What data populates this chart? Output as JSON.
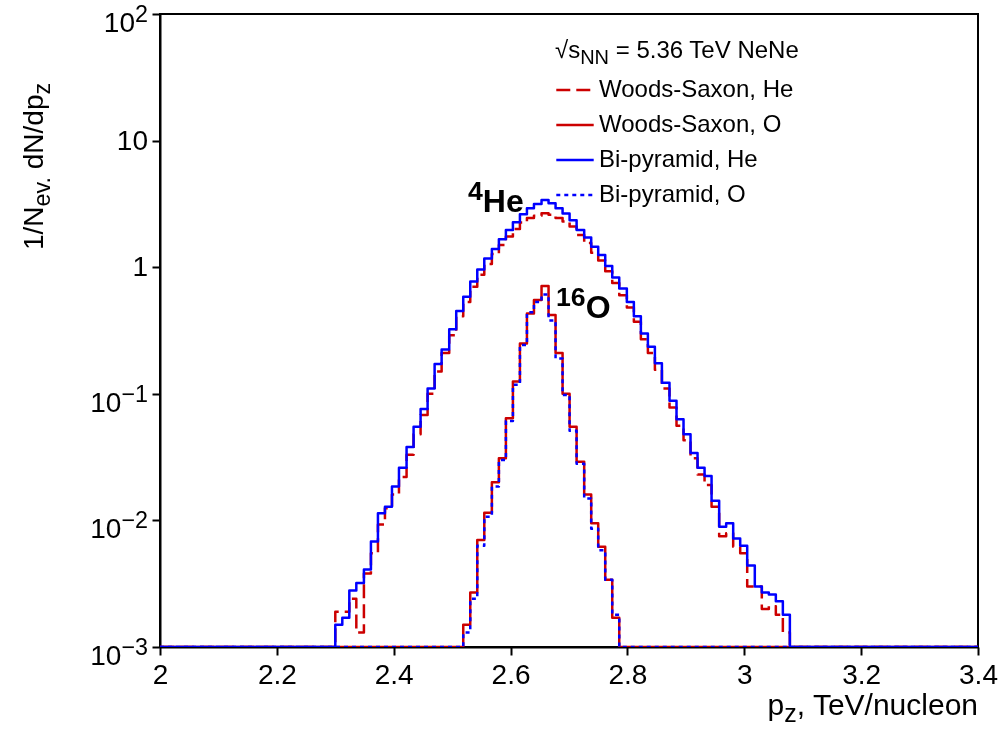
{
  "chart_data": {
    "type": "step",
    "xlabel": "p$_{z}$, TeV/nucleon",
    "ylabel": "1/N$_{ev.}$ dN/dp$_{z}$",
    "legend_title": "√s$_{NN}$ = 5.36 TeV NeNe",
    "legend": "top right",
    "grid": false,
    "log": "y",
    "xlim": [
      2,
      3.4
    ],
    "xticks": [
      2,
      2.2,
      2.4,
      2.6,
      2.8,
      3,
      3.2,
      3.4
    ],
    "ylim": [
      0.001,
      100
    ],
    "yticks": [
      {
        "value": 0.001,
        "label": "10$^{−3}$"
      },
      {
        "value": 0.01,
        "label": "10$^{−2}$"
      },
      {
        "value": 0.1,
        "label": "10$^{−1}$"
      },
      1,
      10,
      {
        "value": 100,
        "label": "10$^{2}$"
      }
    ],
    "annotations": [
      "$^{4}$He",
      "$^{16}$O"
    ],
    "series": [
      {
        "name": "Woods-Saxon, He",
        "color": "#cc0000",
        "line_style": "dashed",
        "x": [
          2,
          2.3,
          2.312,
          2.324,
          2.336,
          2.349,
          2.361,
          2.373,
          2.385,
          2.397,
          2.409,
          2.422,
          2.434,
          2.446,
          2.458,
          2.47,
          2.482,
          2.495,
          2.507,
          2.519,
          2.531,
          2.543,
          2.555,
          2.568,
          2.58,
          2.592,
          2.604,
          2.616,
          2.628,
          2.64,
          2.653,
          2.665,
          2.677,
          2.689,
          2.701,
          2.713,
          2.726,
          2.738,
          2.75,
          2.762,
          2.774,
          2.786,
          2.799,
          2.811,
          2.823,
          2.835,
          2.847,
          2.859,
          2.872,
          2.884,
          2.896,
          2.908,
          2.92,
          2.932,
          2.944,
          2.957,
          2.969,
          2.981,
          2.993,
          3.005,
          3.018,
          3.03,
          3.042,
          3.054,
          3.066,
          3.078,
          3.4
        ],
        "values": [
          0.001,
          0.0019,
          0.0019,
          0.0024,
          0.0013,
          0.0038,
          0.0055,
          0.0093,
          0.0125,
          0.016,
          0.022,
          0.033,
          0.048,
          0.068,
          0.1,
          0.15,
          0.21,
          0.29,
          0.41,
          0.53,
          0.7,
          0.87,
          1.06,
          1.27,
          1.5,
          1.75,
          2.0,
          2.25,
          2.45,
          2.55,
          2.67,
          2.6,
          2.45,
          2.3,
          2.1,
          1.8,
          1.55,
          1.3,
          1.13,
          0.93,
          0.75,
          0.6,
          0.48,
          0.37,
          0.27,
          0.21,
          0.155,
          0.11,
          0.078,
          0.056,
          0.043,
          0.031,
          0.023,
          0.019,
          0.0128,
          0.0075,
          0.0079,
          0.0062,
          0.0055,
          0.003,
          0.003,
          0.002,
          0.0021,
          0.0018,
          0.0013,
          0.001,
          0.001
        ]
      },
      {
        "name": "Woods-Saxon, O",
        "color": "#cc0000",
        "line_style": "solid",
        "x": [
          2,
          2.519,
          2.531,
          2.543,
          2.555,
          2.568,
          2.58,
          2.592,
          2.604,
          2.616,
          2.628,
          2.64,
          2.653,
          2.665,
          2.677,
          2.689,
          2.701,
          2.713,
          2.726,
          2.738,
          2.75,
          2.762,
          2.774,
          2.786,
          3.4
        ],
        "values": [
          0.001,
          0.0015,
          0.0027,
          0.007,
          0.0115,
          0.02,
          0.031,
          0.064,
          0.125,
          0.25,
          0.43,
          0.55,
          0.71,
          0.42,
          0.21,
          0.1,
          0.055,
          0.029,
          0.016,
          0.0095,
          0.0062,
          0.0034,
          0.0017,
          0.001,
          0.001
        ]
      },
      {
        "name": "Bi-pyramid, He",
        "color": "#0000ff",
        "line_style": "solid",
        "x": [
          2,
          2.3,
          2.312,
          2.324,
          2.336,
          2.349,
          2.361,
          2.373,
          2.385,
          2.397,
          2.409,
          2.422,
          2.434,
          2.446,
          2.458,
          2.47,
          2.482,
          2.495,
          2.507,
          2.519,
          2.531,
          2.543,
          2.555,
          2.568,
          2.58,
          2.592,
          2.604,
          2.616,
          2.628,
          2.64,
          2.653,
          2.665,
          2.677,
          2.689,
          2.701,
          2.713,
          2.726,
          2.738,
          2.75,
          2.762,
          2.774,
          2.786,
          2.799,
          2.811,
          2.823,
          2.835,
          2.847,
          2.859,
          2.872,
          2.884,
          2.896,
          2.908,
          2.92,
          2.932,
          2.944,
          2.957,
          2.969,
          2.981,
          2.993,
          3.005,
          3.018,
          3.03,
          3.042,
          3.054,
          3.066,
          3.078,
          3.4
        ],
        "values": [
          0.001,
          0.0015,
          0.0017,
          0.0028,
          0.0032,
          0.0041,
          0.0068,
          0.0114,
          0.0128,
          0.0185,
          0.026,
          0.038,
          0.055,
          0.076,
          0.11,
          0.172,
          0.224,
          0.323,
          0.45,
          0.585,
          0.77,
          0.96,
          1.17,
          1.39,
          1.66,
          1.97,
          2.26,
          2.62,
          2.92,
          3.16,
          3.4,
          3.2,
          2.92,
          2.65,
          2.35,
          1.97,
          1.72,
          1.45,
          1.25,
          1.02,
          0.83,
          0.68,
          0.53,
          0.41,
          0.3,
          0.235,
          0.174,
          0.122,
          0.088,
          0.063,
          0.048,
          0.034,
          0.026,
          0.0224,
          0.0143,
          0.0089,
          0.0095,
          0.0072,
          0.0063,
          0.0044,
          0.003,
          0.0027,
          0.0026,
          0.0023,
          0.0018,
          0.001,
          0.001
        ]
      },
      {
        "name": "Bi-pyramid, O",
        "color": "#0000ff",
        "line_style": "dotted",
        "x": [
          2,
          2.519,
          2.531,
          2.543,
          2.555,
          2.568,
          2.58,
          2.592,
          2.604,
          2.616,
          2.628,
          2.64,
          2.653,
          2.665,
          2.677,
          2.689,
          2.701,
          2.713,
          2.726,
          2.738,
          2.75,
          2.762,
          2.774,
          2.786,
          3.4
        ],
        "values": [
          0.001,
          0.0013,
          0.0024,
          0.0063,
          0.0107,
          0.0185,
          0.03,
          0.061,
          0.118,
          0.243,
          0.44,
          0.53,
          0.61,
          0.38,
          0.19,
          0.098,
          0.051,
          0.028,
          0.0149,
          0.0086,
          0.0058,
          0.0034,
          0.0018,
          0.001,
          0.001
        ]
      }
    ]
  }
}
